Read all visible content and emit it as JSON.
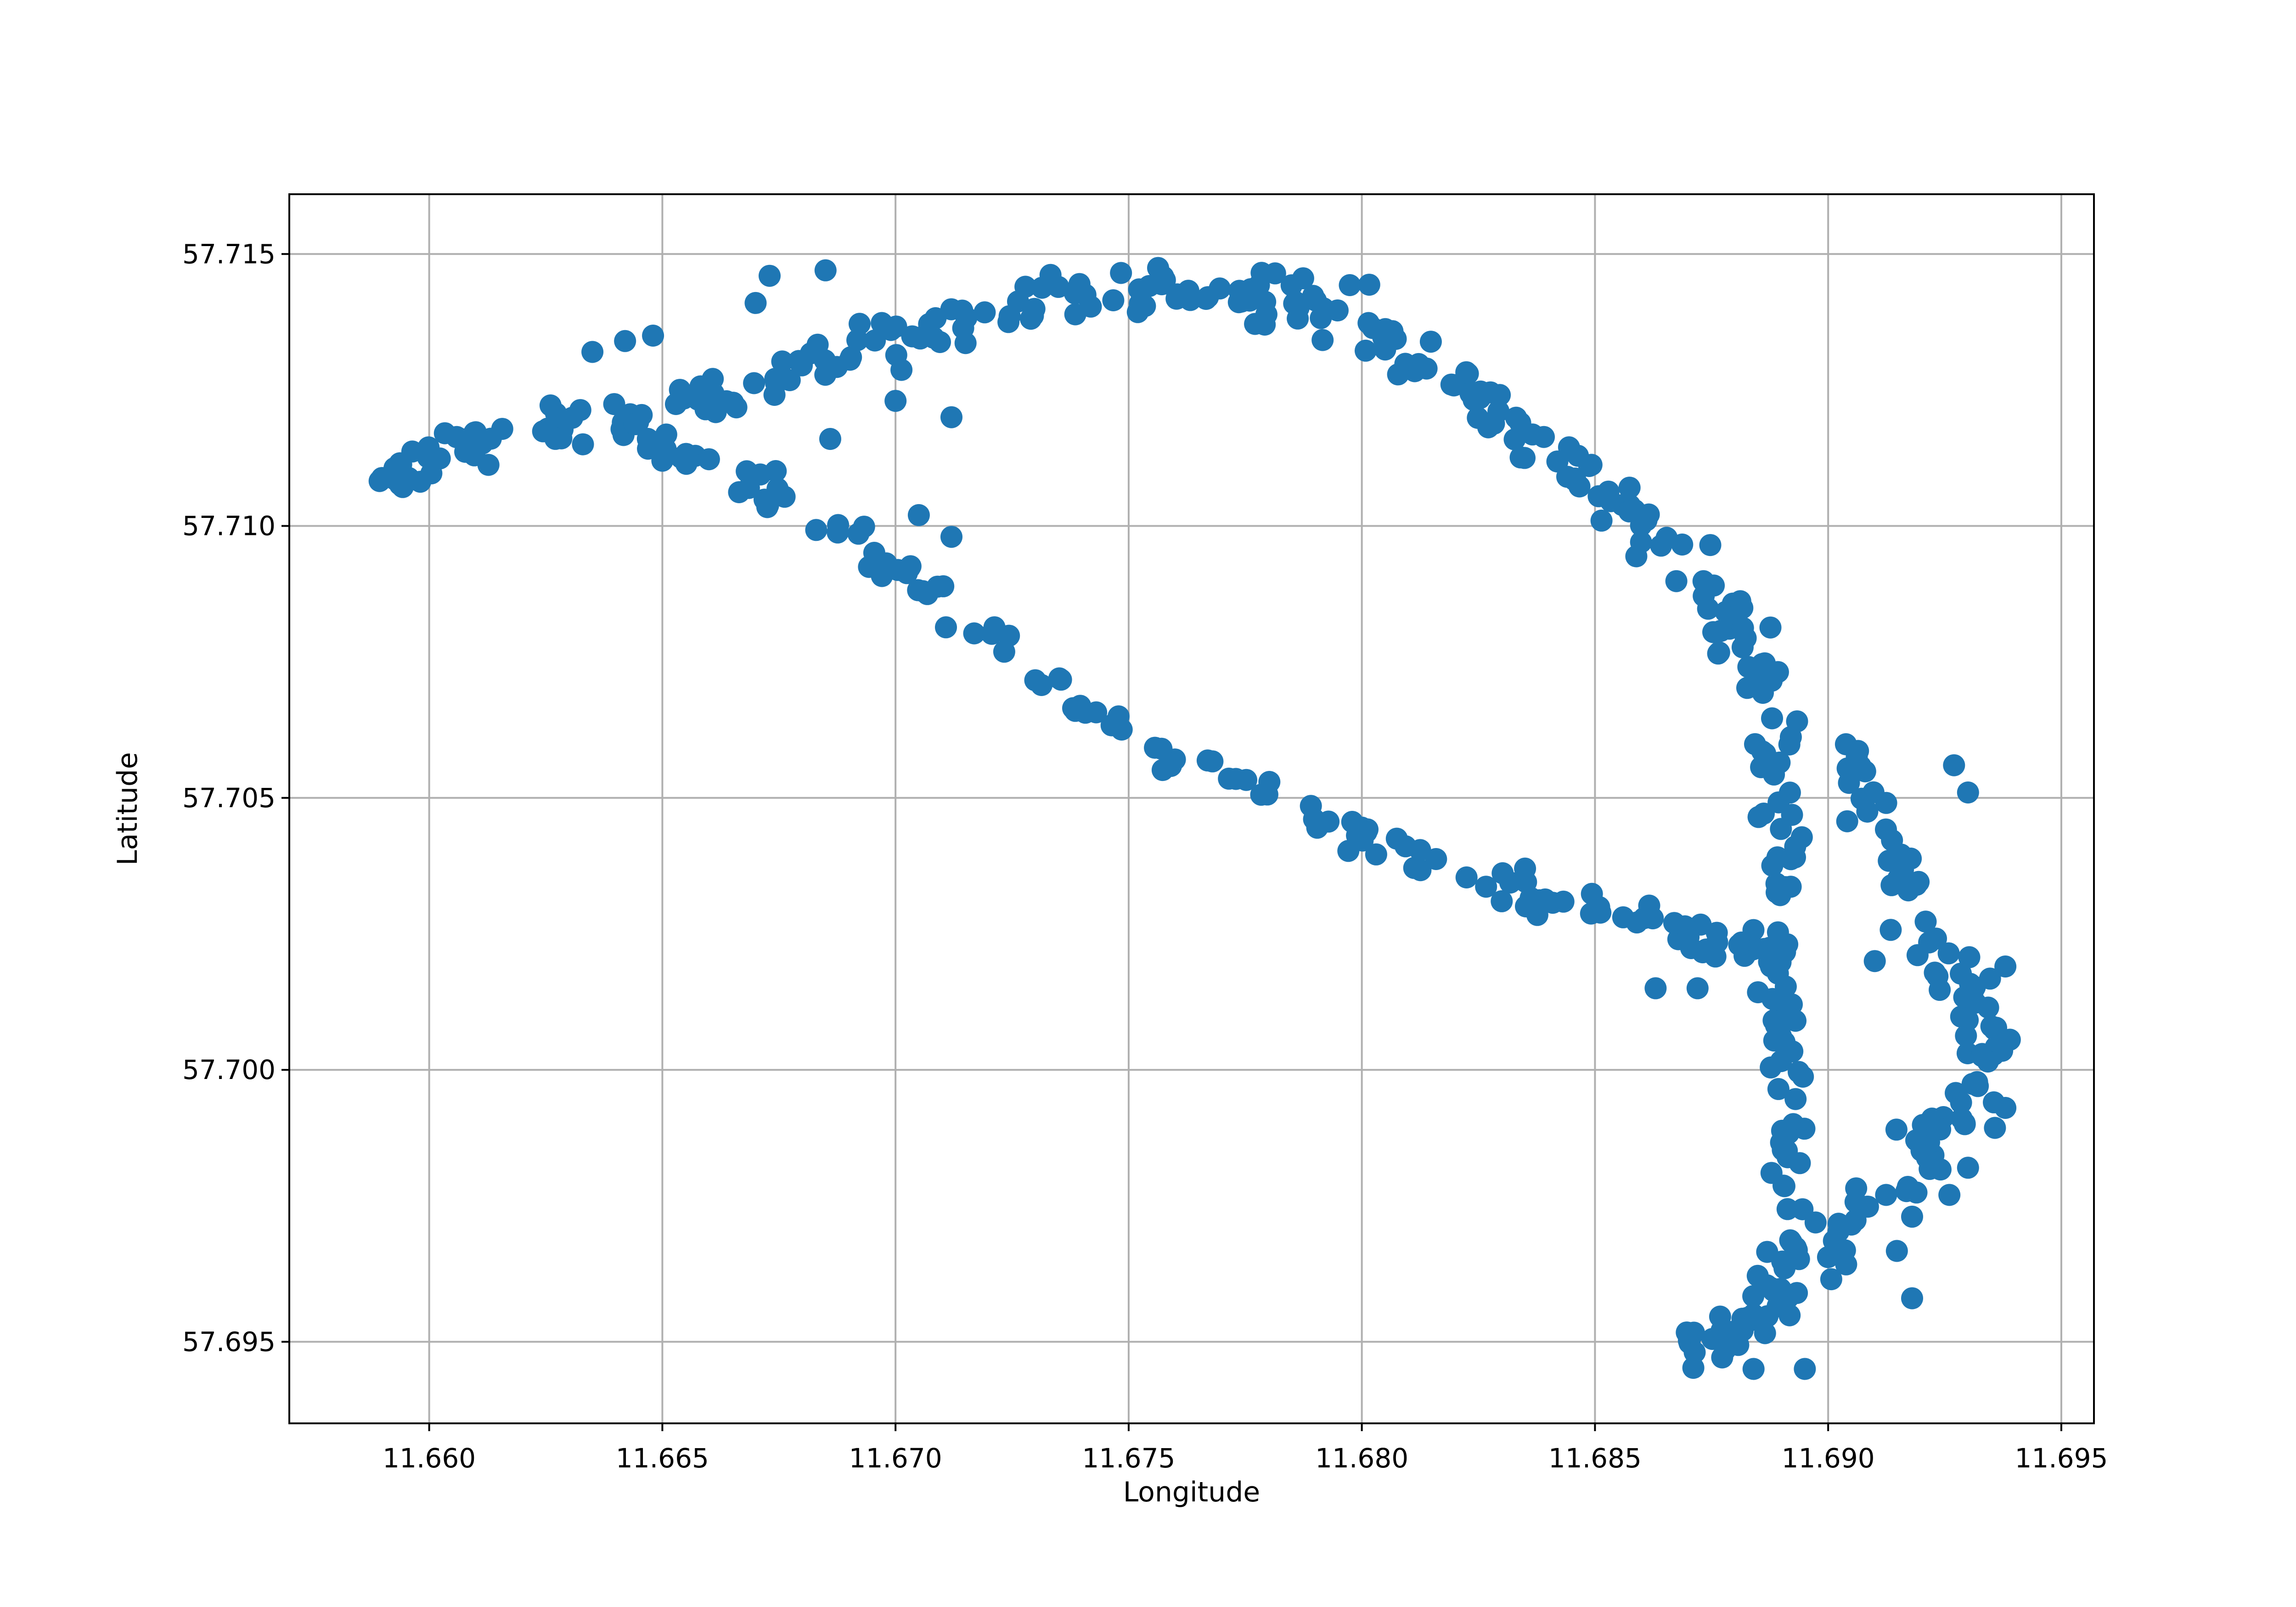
{
  "chart_data": {
    "type": "scatter",
    "title": "",
    "xlabel": "Longitude",
    "ylabel": "Latitude",
    "xlim": [
      11.657,
      11.6957
    ],
    "ylim": [
      57.6935,
      57.7161
    ],
    "x_ticks": [
      {
        "value": 11.66,
        "label": "11.660"
      },
      {
        "value": 11.665,
        "label": "11.665"
      },
      {
        "value": 11.67,
        "label": "11.670"
      },
      {
        "value": 11.675,
        "label": "11.675"
      },
      {
        "value": 11.68,
        "label": "11.680"
      },
      {
        "value": 11.685,
        "label": "11.685"
      },
      {
        "value": 11.69,
        "label": "11.690"
      },
      {
        "value": 11.695,
        "label": "11.695"
      }
    ],
    "y_ticks": [
      {
        "value": 57.695,
        "label": "57.695"
      },
      {
        "value": 57.7,
        "label": "57.700"
      },
      {
        "value": 57.705,
        "label": "57.705"
      },
      {
        "value": 57.71,
        "label": "57.710"
      },
      {
        "value": 57.715,
        "label": "57.715"
      }
    ],
    "grid": true,
    "legend": "none",
    "marker_color": "#1f77b4",
    "series": [
      {
        "tracks": [
          {
            "spread": 0.0004,
            "density": 14,
            "path": [
              [
                11.6589,
                57.7109
              ],
              [
                11.66,
                57.7113
              ],
              [
                11.662,
                57.7117
              ],
              [
                11.664,
                57.712
              ],
              [
                11.666,
                57.7124
              ],
              [
                11.668,
                57.7129
              ],
              [
                11.67,
                57.7134
              ],
              [
                11.672,
                57.7139
              ],
              [
                11.674,
                57.7142
              ],
              [
                11.676,
                57.7144
              ],
              [
                11.678,
                57.7143
              ],
              [
                11.6795,
                57.7139
              ],
              [
                11.681,
                57.7131
              ],
              [
                11.6825,
                57.7123
              ],
              [
                11.684,
                57.7114
              ],
              [
                11.6855,
                57.7104
              ],
              [
                11.687,
                57.7094
              ],
              [
                11.688,
                57.7083
              ],
              [
                11.6887,
                57.7068
              ],
              [
                11.689,
                57.705
              ],
              [
                11.689,
                57.703
              ],
              [
                11.689,
                57.701
              ],
              [
                11.6891,
                57.699
              ],
              [
                11.6892,
                57.697
              ],
              [
                11.6888,
                57.6958
              ],
              [
                11.688,
                57.6952
              ],
              [
                11.687,
                57.695
              ]
            ]
          },
          {
            "spread": 0.0003,
            "density": 10,
            "path": [
              [
                11.6645,
                57.7118
              ],
              [
                11.666,
                57.7111
              ],
              [
                11.668,
                57.7104
              ],
              [
                11.67,
                57.7092
              ],
              [
                11.672,
                57.708
              ],
              [
                11.674,
                57.7066
              ],
              [
                11.676,
                57.7057
              ],
              [
                11.678,
                57.705
              ],
              [
                11.68,
                57.7043
              ],
              [
                11.682,
                57.7037
              ],
              [
                11.684,
                57.7031
              ],
              [
                11.686,
                57.7027
              ],
              [
                11.6875,
                57.7024
              ],
              [
                11.6888,
                57.7022
              ]
            ]
          },
          {
            "spread": 0.0005,
            "density": 12,
            "path": [
              [
                11.6905,
                57.706
              ],
              [
                11.691,
                57.7045
              ],
              [
                11.692,
                57.703
              ],
              [
                11.693,
                57.7015
              ],
              [
                11.6935,
                57.7005
              ],
              [
                11.693,
                57.6995
              ],
              [
                11.692,
                57.6985
              ],
              [
                11.691,
                57.6975
              ],
              [
                11.69,
                57.6965
              ]
            ]
          }
        ],
        "outliers": [
          [
            11.6673,
            57.7146
          ],
          [
            11.6685,
            57.7147
          ],
          [
            11.667,
            57.7141
          ],
          [
            11.6635,
            57.7132
          ],
          [
            11.6642,
            57.7134
          ],
          [
            11.6648,
            57.7135
          ],
          [
            11.6686,
            57.7116
          ],
          [
            11.67,
            57.7123
          ],
          [
            11.6712,
            57.712
          ],
          [
            11.6858,
            57.7103
          ],
          [
            11.6884,
            57.6945
          ],
          [
            11.6918,
            57.6958
          ],
          [
            11.693,
            57.6982
          ],
          [
            11.6926,
            57.6977
          ],
          [
            11.6918,
            57.6973
          ],
          [
            11.6938,
            57.7019
          ],
          [
            11.6935,
            57.7008
          ],
          [
            11.6938,
            57.6993
          ],
          [
            11.693,
            57.7051
          ],
          [
            11.6927,
            57.7056
          ],
          [
            11.691,
            57.702
          ],
          [
            11.6867,
            57.7027
          ],
          [
            11.6872,
            57.7015
          ],
          [
            11.6863,
            57.7015
          ],
          [
            11.683,
            57.7031
          ],
          [
            11.6835,
            57.7037
          ],
          [
            11.6895,
            57.6945
          ],
          [
            11.6705,
            57.7102
          ],
          [
            11.6712,
            57.7098
          ],
          [
            11.665,
            57.7112
          ]
        ]
      }
    ]
  }
}
